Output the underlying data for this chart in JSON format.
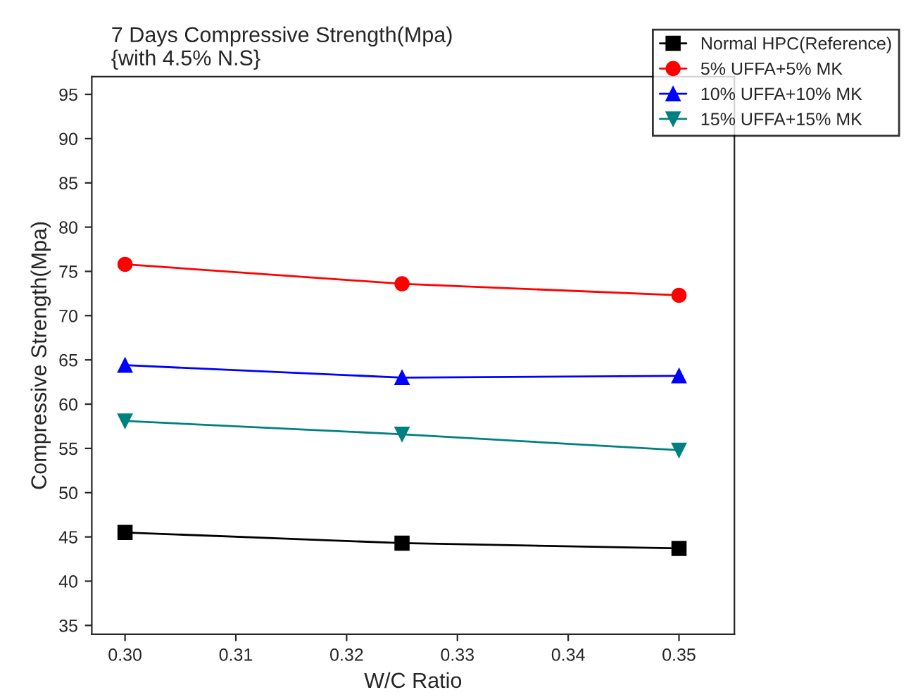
{
  "chart_data": {
    "type": "line",
    "title": "7 Days Compressive Strength(Mpa)\n{with 4.5% N.S}",
    "xlabel": "W/C Ratio",
    "ylabel": "Compressive Strength(Mpa)",
    "x": [
      0.3,
      0.325,
      0.35
    ],
    "series": [
      {
        "name": "Normal HPC(Reference)",
        "color": "#000000",
        "marker": "square",
        "values": [
          45.5,
          44.3,
          43.7
        ]
      },
      {
        "name": "5% UFFA+5% MK",
        "color": "#ff0000",
        "marker": "circle",
        "values": [
          75.8,
          73.6,
          72.3
        ]
      },
      {
        "name": "10% UFFA+10% MK",
        "color": "#0000ff",
        "marker": "triangle",
        "values": [
          64.4,
          63.0,
          63.2
        ]
      },
      {
        "name": "15% UFFA+15% MK",
        "color": "#008080",
        "marker": "triangle_down",
        "values": [
          58.1,
          56.6,
          54.8
        ]
      }
    ],
    "xlim": [
      0.297,
      0.355
    ],
    "ylim": [
      34,
      97
    ],
    "xticks": [
      {
        "value": 0.3,
        "label": "0.30"
      },
      0.31,
      0.32,
      0.33,
      0.34,
      {
        "value": 0.35,
        "label": "0.35"
      }
    ],
    "yticks": [
      35,
      40,
      45,
      50,
      55,
      60,
      65,
      70,
      75,
      80,
      85,
      90,
      95
    ],
    "grid": false,
    "legend": "top right",
    "line_style": "solid"
  }
}
